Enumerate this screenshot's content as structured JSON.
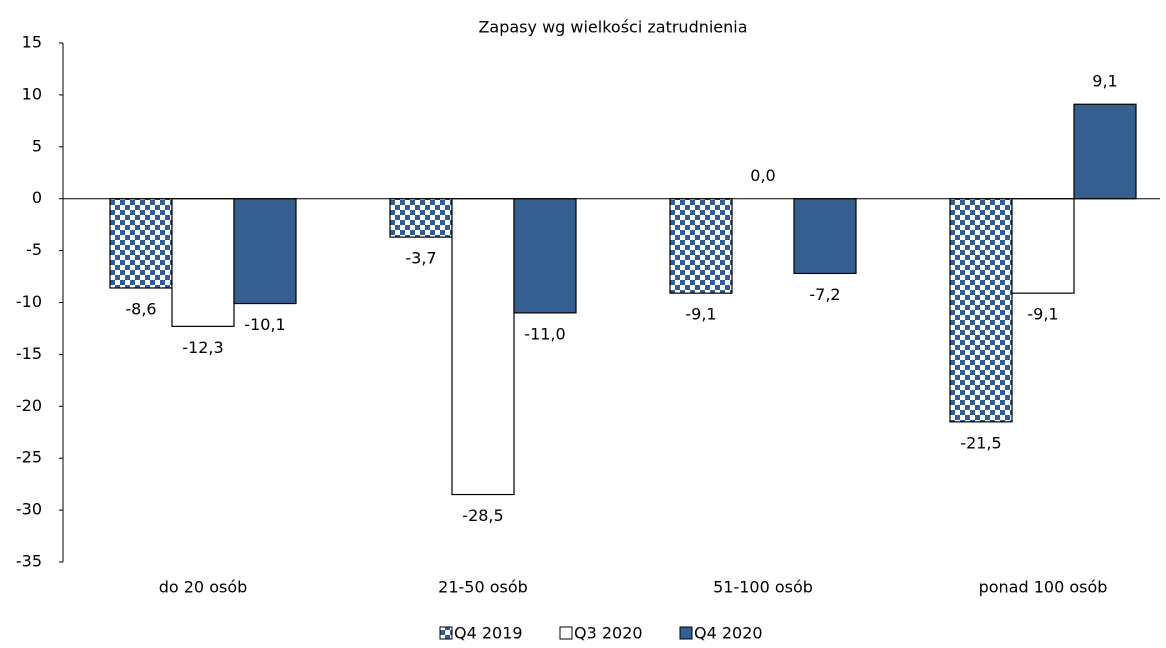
{
  "chart_data": {
    "type": "bar",
    "title": "Zapasy wg wielkości zatrudnienia",
    "categories": [
      "do 20 osób",
      "21-50 osób",
      "51-100 osób",
      "ponad 100 osób"
    ],
    "series": [
      {
        "name": "Q4 2019",
        "color": "#2f5d93",
        "pattern": "checker",
        "values": [
          -8.6,
          -3.7,
          -9.1,
          -21.5
        ],
        "value_labels": [
          "-8,6",
          "-3,7",
          "-9,1",
          "-21,5"
        ]
      },
      {
        "name": "Q3 2020",
        "color": "#ffffff",
        "values": [
          -12.3,
          -28.5,
          0.0,
          -9.1
        ],
        "value_labels": [
          "-12,3",
          "-28,5",
          "0,0",
          "-9,1"
        ]
      },
      {
        "name": "Q4 2020",
        "color": "#355f91",
        "values": [
          -10.1,
          -11.0,
          -7.2,
          9.1
        ],
        "value_labels": [
          "-10,1",
          "-11,0",
          "-7,2",
          "9,1"
        ]
      }
    ],
    "ylim": [
      -35,
      15
    ],
    "yticks": [
      -35,
      -30,
      -25,
      -20,
      -15,
      -10,
      -5,
      0,
      5,
      10,
      15
    ],
    "grid": false,
    "legend": "bottom"
  }
}
